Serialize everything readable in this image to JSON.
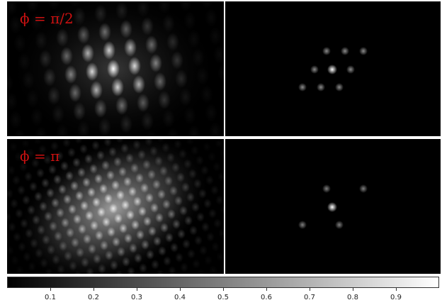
{
  "panels": {
    "top_left": {
      "label": "ϕ = π/2"
    },
    "bottom_left": {
      "label": "ϕ = π"
    }
  },
  "colorbar": {
    "min": 0.0,
    "max": 1.0,
    "colormap": "gray",
    "ticks": [
      "0.1",
      "0.2",
      "0.3",
      "0.4",
      "0.5",
      "0.6",
      "0.7",
      "0.8",
      "0.9"
    ],
    "tick_values": [
      0.1,
      0.2,
      0.3,
      0.4,
      0.5,
      0.6,
      0.7,
      0.8,
      0.9
    ]
  },
  "colors": {
    "label": "#cc1111",
    "background": "#000000"
  }
}
